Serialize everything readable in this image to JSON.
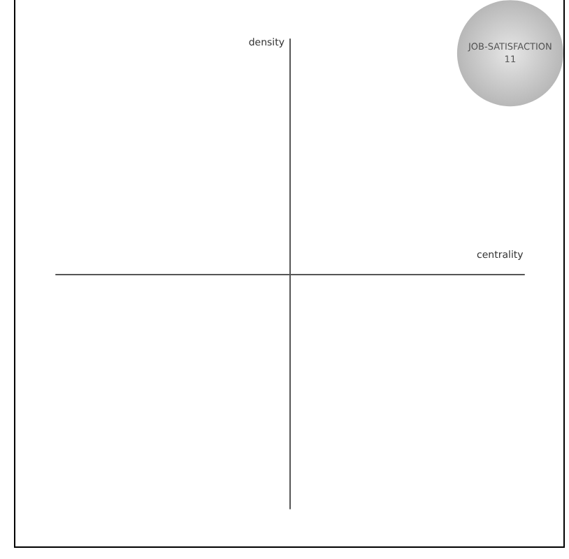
{
  "chart_data": {
    "type": "other",
    "xlabel": "centrality",
    "ylabel": "density",
    "categories": [
      "JOB-SATISFACTION"
    ],
    "values": [
      11
    ],
    "color": "#9a9a9a",
    "data_labels": true
  }
}
